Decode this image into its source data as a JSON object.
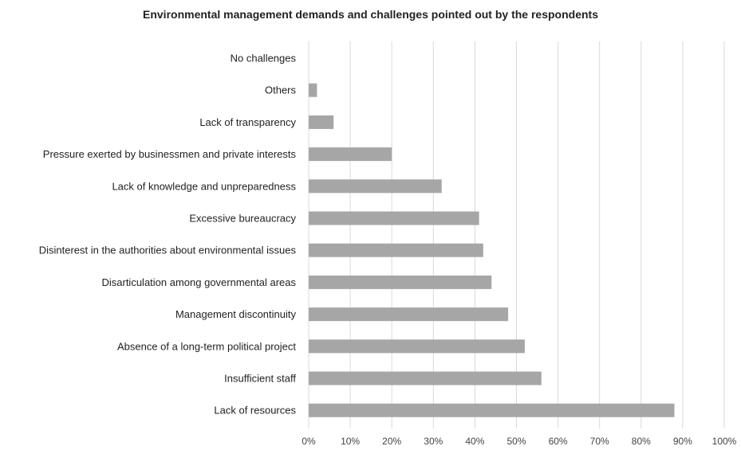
{
  "chart_data": {
    "type": "bar",
    "orientation": "horizontal",
    "title": "Environmental management demands and challenges pointed out by the respondents",
    "categories": [
      "No challenges",
      "Others",
      "Lack of transparency",
      "Pressure exerted by businessmen and private interests",
      "Lack of knowledge and unpreparedness",
      "Excessive bureaucracy",
      "Disinterest in the authorities about environmental issues",
      "Disarticulation among governmental areas",
      "Management discontinuity",
      "Absence of a long-term political project",
      "Insufficient staff",
      "Lack of resources"
    ],
    "values": [
      0,
      2,
      6,
      20,
      32,
      41,
      42,
      44,
      48,
      52,
      56,
      88
    ],
    "xlim": [
      0,
      100
    ],
    "x_ticks": [
      "0%",
      "10%",
      "20%",
      "30%",
      "40%",
      "50%",
      "60%",
      "70%",
      "80%",
      "90%",
      "100%"
    ],
    "xlabel": "",
    "ylabel": "",
    "grid": "vertical",
    "legend": "none",
    "colors": {
      "bar": "#a6a6a6",
      "grid": "#d9d9d9",
      "text": "#222222",
      "tick": "#444444"
    }
  }
}
